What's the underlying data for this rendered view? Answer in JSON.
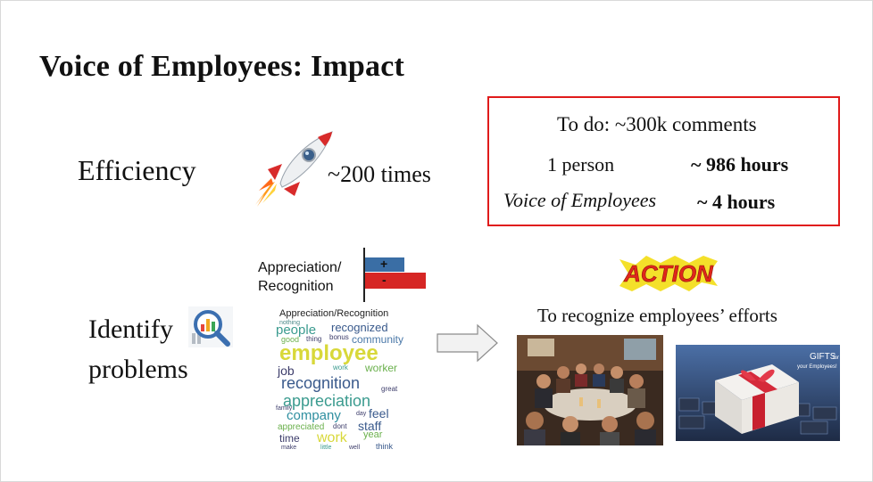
{
  "slide": {
    "title": "Voice of Employees: Impact",
    "efficiency": {
      "label": "Efficiency",
      "speedup": "~200 times"
    },
    "comparison_box": {
      "todo": "To do: ~300k comments",
      "rows": [
        {
          "label": "1 person",
          "value": "~ 986 hours"
        },
        {
          "label": "Voice of Employees",
          "value": "~ 4 hours"
        }
      ]
    },
    "sentiment_chart": {
      "category_line1": "Appreciation/",
      "category_line2": "Recognition",
      "positive_sign": "+",
      "negative_sign": "-",
      "positive_color": "#3a6ea5",
      "negative_color": "#d62624"
    },
    "identify": {
      "line1": "Identify",
      "line2": "problems"
    },
    "word_cloud": {
      "title": "Appreciation/Recognition",
      "words": [
        "nothing",
        "people",
        "recognized",
        "good",
        "thing",
        "bonus",
        "community",
        "employee",
        "job",
        "work",
        "worker",
        "recognition",
        "appreciation",
        "great",
        "family",
        "company",
        "feel",
        "day",
        "appreciated",
        "dont",
        "staff",
        "time",
        "work",
        "year",
        "make",
        "little",
        "well",
        "think"
      ]
    },
    "action": {
      "badge": "ACTION",
      "caption": "To recognize employees’ efforts",
      "gift_text_line1": "GIFTS",
      "gift_text_line2": "for",
      "gift_text_line3": "your Employees!"
    },
    "icons": {
      "rocket": "rocket-icon",
      "magnifier": "magnifier-chart-icon",
      "arrow": "right-arrow-icon"
    },
    "colors": {
      "box_border": "#e01b1b",
      "action_yellow": "#f4e02a",
      "action_red": "#e0261b"
    }
  }
}
